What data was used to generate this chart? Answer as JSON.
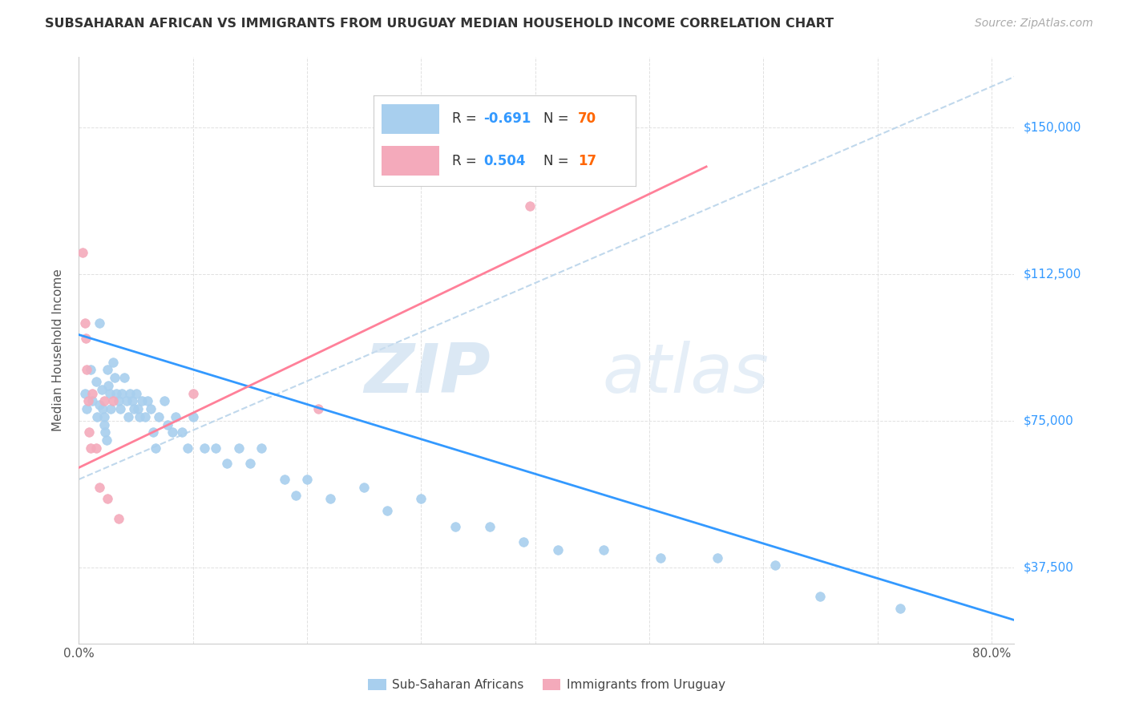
{
  "title": "SUBSAHARAN AFRICAN VS IMMIGRANTS FROM URUGUAY MEDIAN HOUSEHOLD INCOME CORRELATION CHART",
  "source": "Source: ZipAtlas.com",
  "ylabel": "Median Household Income",
  "yticks": [
    37500,
    75000,
    112500,
    150000
  ],
  "ytick_labels": [
    "$37,500",
    "$75,000",
    "$112,500",
    "$150,000"
  ],
  "xlim": [
    0.0,
    0.82
  ],
  "ylim": [
    18000,
    168000
  ],
  "color_blue": "#A8CFEE",
  "color_pink": "#F4AABB",
  "trendline1_color": "#3399FF",
  "trendline2_color": "#FF8099",
  "trendline_dashed_color": "#C0D8EC",
  "watermark_zip": "ZIP",
  "watermark_atlas": "atlas",
  "sub_saharan_x": [
    0.005,
    0.007,
    0.01,
    0.012,
    0.015,
    0.016,
    0.018,
    0.018,
    0.02,
    0.021,
    0.022,
    0.022,
    0.023,
    0.024,
    0.025,
    0.026,
    0.027,
    0.028,
    0.03,
    0.031,
    0.033,
    0.035,
    0.036,
    0.038,
    0.04,
    0.042,
    0.043,
    0.045,
    0.047,
    0.048,
    0.05,
    0.052,
    0.053,
    0.055,
    0.058,
    0.06,
    0.063,
    0.065,
    0.067,
    0.07,
    0.075,
    0.078,
    0.082,
    0.085,
    0.09,
    0.095,
    0.1,
    0.11,
    0.12,
    0.13,
    0.14,
    0.15,
    0.16,
    0.18,
    0.19,
    0.2,
    0.22,
    0.25,
    0.27,
    0.3,
    0.33,
    0.36,
    0.39,
    0.42,
    0.46,
    0.51,
    0.56,
    0.61,
    0.65,
    0.72
  ],
  "sub_saharan_y": [
    82000,
    78000,
    88000,
    80000,
    85000,
    76000,
    100000,
    79000,
    83000,
    78000,
    76000,
    74000,
    72000,
    70000,
    88000,
    84000,
    82000,
    78000,
    90000,
    86000,
    82000,
    80000,
    78000,
    82000,
    86000,
    80000,
    76000,
    82000,
    80000,
    78000,
    82000,
    78000,
    76000,
    80000,
    76000,
    80000,
    78000,
    72000,
    68000,
    76000,
    80000,
    74000,
    72000,
    76000,
    72000,
    68000,
    76000,
    68000,
    68000,
    64000,
    68000,
    64000,
    68000,
    60000,
    56000,
    60000,
    55000,
    58000,
    52000,
    55000,
    48000,
    48000,
    44000,
    42000,
    42000,
    40000,
    40000,
    38000,
    30000,
    27000
  ],
  "uruguay_x": [
    0.003,
    0.005,
    0.006,
    0.007,
    0.008,
    0.009,
    0.01,
    0.012,
    0.015,
    0.018,
    0.022,
    0.025,
    0.03,
    0.035,
    0.1,
    0.21,
    0.395
  ],
  "uruguay_y": [
    118000,
    100000,
    96000,
    88000,
    80000,
    72000,
    68000,
    82000,
    68000,
    58000,
    80000,
    55000,
    80000,
    50000,
    82000,
    78000,
    130000
  ],
  "blue_trend_x": [
    0.0,
    0.82
  ],
  "blue_trend_y": [
    97000,
    24000
  ],
  "pink_trend_x": [
    0.0,
    0.55
  ],
  "pink_trend_y": [
    63000,
    140000
  ],
  "dashed_trend_x": [
    0.0,
    0.82
  ],
  "dashed_trend_y": [
    60000,
    163000
  ],
  "legend_blue_r": "-0.691",
  "legend_blue_n": "70",
  "legend_pink_r": "0.504",
  "legend_pink_n": "17"
}
